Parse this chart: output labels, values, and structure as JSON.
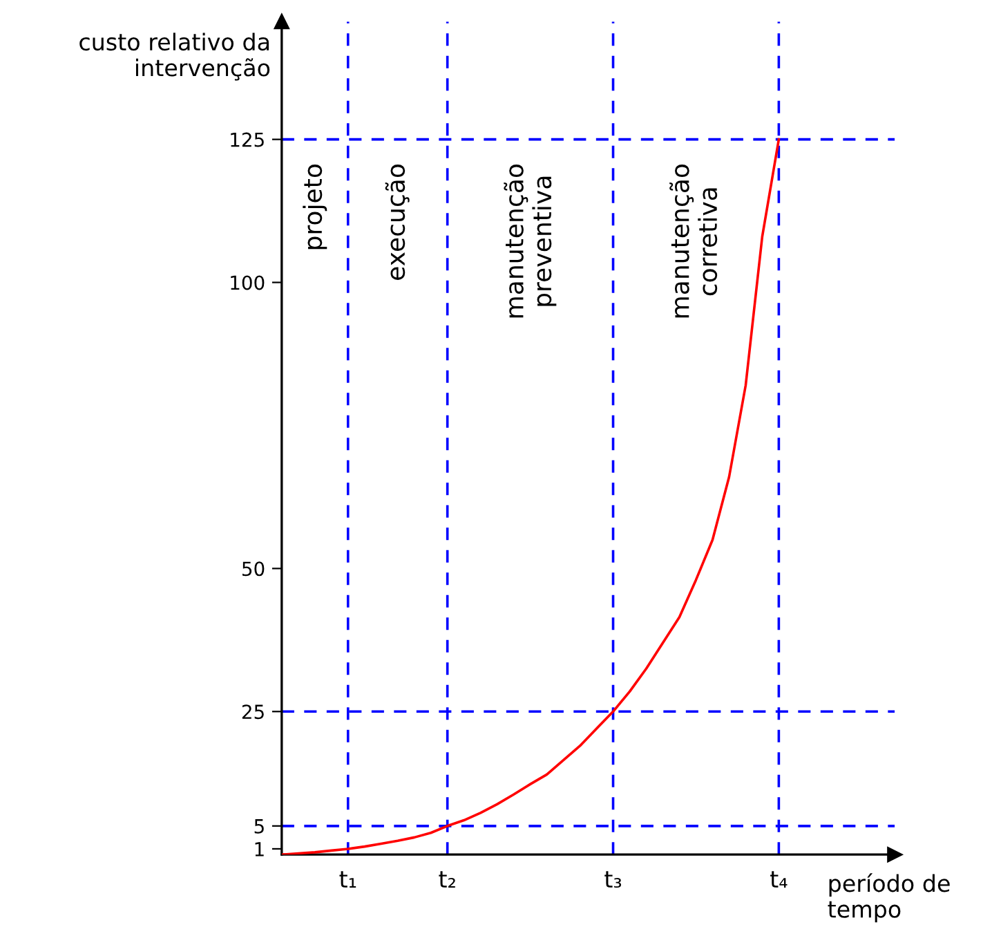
{
  "chart_data": {
    "type": "line",
    "xlabel": "período de\ntempo",
    "ylabel": "custo relativo da\nintervenção",
    "categories": [
      null,
      null,
      null,
      null,
      "t₁",
      null,
      null,
      null,
      null,
      null,
      "t₂",
      null,
      null,
      null,
      null,
      null,
      null,
      null,
      null,
      null,
      "t₃",
      null,
      null,
      null,
      null,
      null,
      null,
      null,
      null,
      null,
      "t₄",
      null,
      null,
      null,
      null,
      null,
      null,
      null
    ],
    "series": [
      {
        "color": "#ff0000",
        "values": [
          0,
          0.2,
          0.4,
          0.7,
          1,
          1.4,
          1.9,
          2.4,
          3,
          3.8,
          5,
          6,
          7.3,
          8.8,
          10.5,
          12.3,
          14,
          16.5,
          19,
          22,
          25,
          28.5,
          32.5,
          37,
          41.5,
          48,
          55,
          66,
          82,
          108,
          125,
          null,
          null,
          null,
          null,
          null,
          null,
          null
        ]
      }
    ],
    "ylim": [
      0,
      145.6
    ],
    "yticks": [
      1,
      5,
      25,
      50,
      100,
      125
    ],
    "ref_lines": [
      {
        "axis": "x",
        "value": "t₁",
        "color": "#0000ff",
        "line_style": "dashed"
      },
      {
        "axis": "x",
        "value": "t₂",
        "color": "#0000ff",
        "line_style": "dashed"
      },
      {
        "axis": "x",
        "value": "t₃",
        "color": "#0000ff",
        "line_style": "dashed"
      },
      {
        "axis": "x",
        "value": "t₄",
        "color": "#0000ff",
        "line_style": "dashed"
      },
      {
        "axis": "y",
        "value": 5,
        "color": "#0000ff",
        "line_style": "dashed"
      },
      {
        "axis": "y",
        "value": 25,
        "color": "#0000ff",
        "line_style": "dashed"
      },
      {
        "axis": "y",
        "value": 125,
        "color": "#0000ff",
        "line_style": "dashed"
      }
    ],
    "annotations": [
      "projeto",
      "execução",
      "manutenção\npreventiva",
      "manutenção\ncorretiva"
    ],
    "grid": false,
    "legend": false,
    "marker": "none",
    "line_style": "solid"
  }
}
